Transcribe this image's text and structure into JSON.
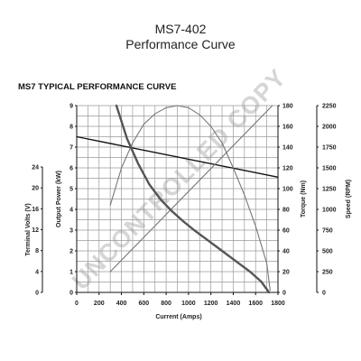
{
  "header": {
    "title": "MS7-402",
    "subtitle": "Performance Curve"
  },
  "watermark": "UNCONTROLLED COPY",
  "chart_data": {
    "type": "line",
    "title": "MS7 TYPICAL PERFORMANCE CURVE",
    "xlabel": "Current (Amps)",
    "xlim": [
      0,
      1800
    ],
    "x_ticks": [
      0,
      200,
      400,
      600,
      800,
      1000,
      1200,
      1400,
      1600,
      1800
    ],
    "grid": true,
    "axes": [
      {
        "id": "volts",
        "label": "Terminal Volts (V)",
        "side": "left-outer",
        "ylim": [
          0,
          24
        ],
        "ticks": [
          0,
          4,
          8,
          12,
          16,
          20,
          24
        ]
      },
      {
        "id": "power",
        "label": "Output Power (kW)",
        "side": "left-inner",
        "ylim": [
          0,
          9
        ],
        "ticks": [
          0,
          1,
          2,
          3,
          4,
          5,
          6,
          7,
          8,
          9
        ]
      },
      {
        "id": "torque",
        "label": "Torque (Nm)",
        "side": "right-inner",
        "ylim": [
          0,
          180
        ],
        "ticks": [
          0,
          20,
          40,
          60,
          80,
          100,
          120,
          140,
          160,
          180
        ]
      },
      {
        "id": "speed",
        "label": "Speed (RPM)",
        "side": "right-outer",
        "ylim": [
          0,
          2250
        ],
        "ticks": [
          0,
          250,
          500,
          750,
          1000,
          1250,
          1500,
          1750,
          2000,
          2250
        ]
      }
    ],
    "series": [
      {
        "axis": "volts",
        "color": "#111111",
        "width": 1.4,
        "x": [
          0,
          1800
        ],
        "y": [
          20,
          14.8
        ]
      },
      {
        "axis": "power",
        "color": "#777777",
        "width": 1.1,
        "x": [
          300,
          400,
          500,
          600,
          700,
          800,
          900,
          1000,
          1100,
          1200,
          1300,
          1400,
          1500,
          1600,
          1700,
          1730
        ],
        "y": [
          4.2,
          6.0,
          7.2,
          8.1,
          8.6,
          8.9,
          9.0,
          8.9,
          8.55,
          8.0,
          7.2,
          6.0,
          4.7,
          3.2,
          1.4,
          0.1
        ]
      },
      {
        "axis": "torque",
        "color": "#777777",
        "width": 1.1,
        "x": [
          300,
          1750
        ],
        "y": [
          20,
          180
        ]
      },
      {
        "axis": "speed",
        "color": "#555555",
        "width": 2.4,
        "x": [
          355,
          450,
          550,
          650,
          750,
          850,
          950,
          1050,
          1150,
          1250,
          1350,
          1450,
          1550,
          1650,
          1720
        ],
        "y": [
          2250,
          1850,
          1550,
          1300,
          1120,
          980,
          860,
          750,
          650,
          550,
          450,
          350,
          250,
          130,
          0
        ]
      }
    ]
  }
}
